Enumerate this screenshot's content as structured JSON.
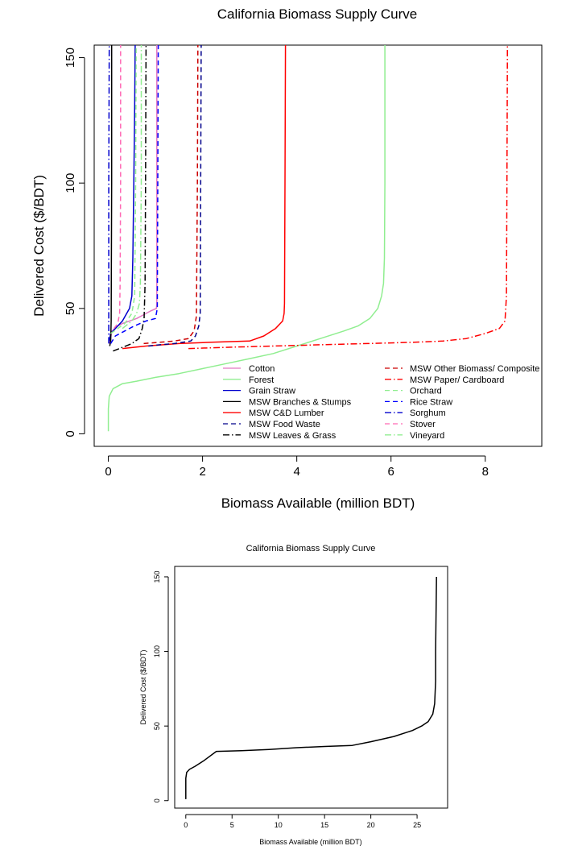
{
  "chart_data": [
    {
      "type": "line",
      "title": "California Biomass Supply Curve",
      "xlabel": "Biomass Available (million BDT)",
      "ylabel": "Delivered Cost ($/BDT)",
      "xlim": [
        -0.3,
        9.2
      ],
      "ylim": [
        -5,
        155
      ],
      "xticks": [
        "0",
        "2",
        "4",
        "6",
        "8"
      ],
      "yticks": [
        "0",
        "50",
        "100",
        "150"
      ],
      "grid": false,
      "legend_placement": "bottom-right",
      "series": [
        {
          "name": "Cotton",
          "color": "#e377c2",
          "dash": "solid",
          "points": [
            [
              0.02,
              36
            ],
            [
              0.08,
              41
            ],
            [
              0.2,
              43
            ],
            [
              0.3,
              44
            ],
            [
              0.45,
              45
            ],
            [
              0.6,
              46
            ],
            [
              0.75,
              47.5
            ],
            [
              0.9,
              49
            ],
            [
              1.02,
              50
            ],
            [
              1.03,
              52
            ],
            [
              1.03,
              155
            ]
          ]
        },
        {
          "name": "Forest",
          "color": "#90ee90",
          "dash": "solid",
          "points": [
            [
              0,
              1
            ],
            [
              0,
              10
            ],
            [
              0.02,
              15
            ],
            [
              0.1,
              18
            ],
            [
              0.3,
              20
            ],
            [
              0.6,
              21
            ],
            [
              1.0,
              22.5
            ],
            [
              1.5,
              24
            ],
            [
              2.0,
              26
            ],
            [
              2.5,
              28
            ],
            [
              3.0,
              30
            ],
            [
              3.5,
              32
            ],
            [
              4.0,
              35
            ],
            [
              4.5,
              38
            ],
            [
              5.0,
              41
            ],
            [
              5.3,
              43
            ],
            [
              5.55,
              46
            ],
            [
              5.72,
              50
            ],
            [
              5.8,
              55
            ],
            [
              5.84,
              60
            ],
            [
              5.86,
              70
            ],
            [
              5.87,
              100
            ],
            [
              5.87,
              155
            ]
          ]
        },
        {
          "name": "Grain Straw",
          "color": "#0000cd",
          "dash": "solid",
          "points": [
            [
              0.02,
              37
            ],
            [
              0.05,
              40
            ],
            [
              0.15,
              42
            ],
            [
              0.3,
              45
            ],
            [
              0.45,
              50
            ],
            [
              0.5,
              55
            ],
            [
              0.52,
              70
            ],
            [
              0.54,
              100
            ],
            [
              0.56,
              130
            ],
            [
              0.57,
              155
            ]
          ]
        },
        {
          "name": "MSW Branches & Stumps",
          "color": "#000000",
          "dash": "solid",
          "points": [
            [
              0.03,
              35
            ],
            [
              0.05,
              37
            ],
            [
              0.06,
              45
            ],
            [
              0.07,
              100
            ],
            [
              0.07,
              155
            ]
          ]
        },
        {
          "name": "MSW C&D Lumber",
          "color": "#ff0000",
          "dash": "solid",
          "points": [
            [
              0.3,
              34
            ],
            [
              0.8,
              35
            ],
            [
              1.5,
              36
            ],
            [
              2.2,
              36.5
            ],
            [
              3.0,
              37
            ],
            [
              3.3,
              39
            ],
            [
              3.55,
              42
            ],
            [
              3.7,
              45
            ],
            [
              3.73,
              48
            ],
            [
              3.74,
              52
            ],
            [
              3.75,
              100
            ],
            [
              3.76,
              155
            ]
          ]
        },
        {
          "name": "MSW Food Waste",
          "color": "#00008b",
          "dash": "6,4",
          "points": [
            [
              0.85,
              35
            ],
            [
              1.1,
              35.5
            ],
            [
              1.4,
              36
            ],
            [
              1.75,
              37
            ],
            [
              1.85,
              39
            ],
            [
              1.92,
              43
            ],
            [
              1.95,
              48
            ],
            [
              1.96,
              100
            ],
            [
              1.97,
              155
            ]
          ]
        },
        {
          "name": "MSW Leaves & Grass",
          "color": "#000000",
          "dash": "8,3,1.5,3",
          "points": [
            [
              0.1,
              33
            ],
            [
              0.3,
              34.5
            ],
            [
              0.5,
              36
            ],
            [
              0.65,
              38
            ],
            [
              0.72,
              42
            ],
            [
              0.76,
              46
            ],
            [
              0.78,
              60
            ],
            [
              0.79,
              100
            ],
            [
              0.8,
              155
            ]
          ]
        },
        {
          "name": "MSW Other Biomass/ Composite",
          "color": "#cc0000",
          "dash": "6,4",
          "points": [
            [
              0.75,
              36
            ],
            [
              1.1,
              36.5
            ],
            [
              1.4,
              37
            ],
            [
              1.7,
              38
            ],
            [
              1.82,
              41
            ],
            [
              1.87,
              47
            ],
            [
              1.89,
              100
            ],
            [
              1.9,
              155
            ]
          ]
        },
        {
          "name": "MSW Paper/ Cardboard",
          "color": "#ff0000",
          "dash": "8,3,1.5,3",
          "points": [
            [
              1.7,
              34
            ],
            [
              2.5,
              34.5
            ],
            [
              3.5,
              35
            ],
            [
              4.5,
              35.5
            ],
            [
              5.5,
              36
            ],
            [
              6.5,
              36.5
            ],
            [
              7.1,
              37
            ],
            [
              7.6,
              38
            ],
            [
              8.0,
              40
            ],
            [
              8.3,
              42
            ],
            [
              8.42,
              45
            ],
            [
              8.45,
              55
            ],
            [
              8.46,
              100
            ],
            [
              8.47,
              155
            ]
          ]
        },
        {
          "name": "Orchard",
          "color": "#90ee90",
          "dash": "6,4",
          "points": [
            [
              0.05,
              40
            ],
            [
              0.2,
              42
            ],
            [
              0.35,
              44
            ],
            [
              0.5,
              48
            ],
            [
              0.56,
              55
            ],
            [
              0.58,
              100
            ],
            [
              0.59,
              155
            ]
          ]
        },
        {
          "name": "Rice Straw",
          "color": "#0000ff",
          "dash": "6,4",
          "points": [
            [
              0.05,
              36
            ],
            [
              0.15,
              39
            ],
            [
              0.35,
              41
            ],
            [
              0.55,
              43
            ],
            [
              0.8,
              45
            ],
            [
              1.0,
              46
            ],
            [
              1.04,
              50
            ],
            [
              1.05,
              100
            ],
            [
              1.06,
              155
            ]
          ]
        },
        {
          "name": "Sorghum",
          "color": "#0000cd",
          "dash": "8,3,1.5,3",
          "points": [
            [
              0.01,
              36
            ],
            [
              0.01,
              100
            ],
            [
              0.02,
              155
            ]
          ]
        },
        {
          "name": "Stover",
          "color": "#ff69b4",
          "dash": "6,4",
          "points": [
            [
              0.12,
              42
            ],
            [
              0.2,
              44
            ],
            [
              0.24,
              48
            ],
            [
              0.25,
              60
            ],
            [
              0.26,
              100
            ],
            [
              0.26,
              155
            ]
          ]
        },
        {
          "name": "Vineyard",
          "color": "#90ee90",
          "dash": "8,3,1.5,3",
          "points": [
            [
              0.3,
              42
            ],
            [
              0.5,
              45
            ],
            [
              0.6,
              48
            ],
            [
              0.66,
              52
            ],
            [
              0.68,
              60
            ],
            [
              0.7,
              100
            ],
            [
              0.7,
              155
            ]
          ]
        }
      ]
    },
    {
      "type": "line",
      "title": "California Biomass Supply Curve",
      "xlabel": "Biomass Available (million BDT)",
      "ylabel": "Delivered Cost ($/BDT)",
      "xlim": [
        -1.2,
        28.3
      ],
      "ylim": [
        -5,
        157
      ],
      "xticks": [
        "0",
        "5",
        "10",
        "15",
        "20",
        "25"
      ],
      "yticks": [
        "0",
        "50",
        "100",
        "150"
      ],
      "grid": false,
      "series": [
        {
          "color": "#000000",
          "dash": "solid",
          "points": [
            [
              0,
              1
            ],
            [
              0,
              15
            ],
            [
              0.1,
              19
            ],
            [
              0.4,
              21
            ],
            [
              1.0,
              23
            ],
            [
              2.0,
              27
            ],
            [
              3.3,
              33
            ],
            [
              6.0,
              33.5
            ],
            [
              9.0,
              34.3
            ],
            [
              12.0,
              35.5
            ],
            [
              15.0,
              36.3
            ],
            [
              18.0,
              37
            ],
            [
              20.0,
              39.5
            ],
            [
              22.5,
              43
            ],
            [
              24.5,
              47
            ],
            [
              25.5,
              50
            ],
            [
              26.2,
              53
            ],
            [
              26.7,
              58
            ],
            [
              26.9,
              65
            ],
            [
              27.0,
              80
            ],
            [
              27.0,
              100
            ],
            [
              27.1,
              150
            ]
          ]
        }
      ]
    }
  ]
}
